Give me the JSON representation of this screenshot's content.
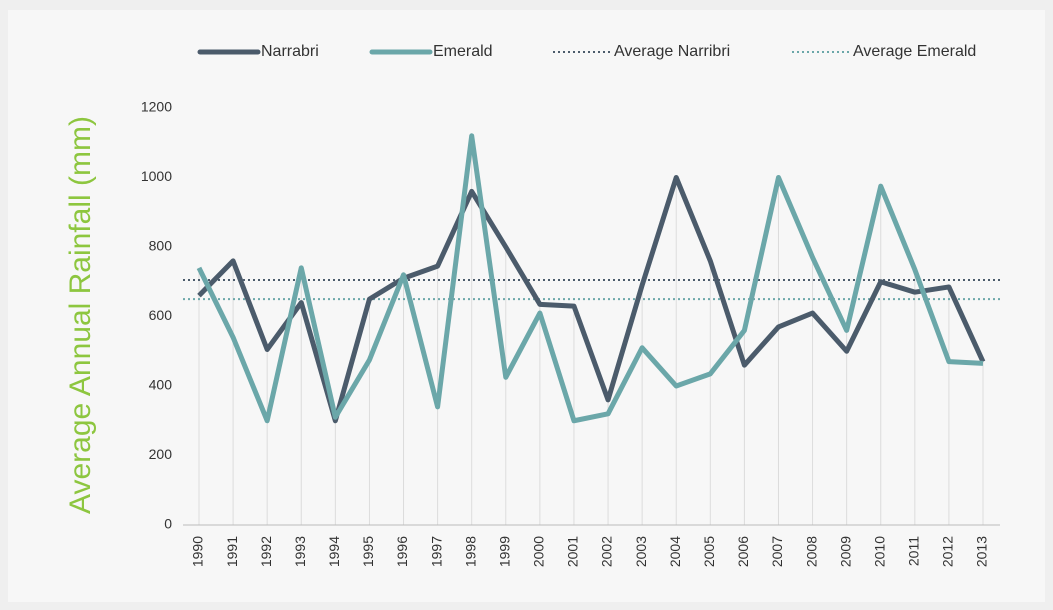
{
  "chart_data": {
    "type": "line",
    "y_label": "Average Annual Rainfall (mm)",
    "categories": [
      "1990",
      "1991",
      "1992",
      "1993",
      "1994",
      "1995",
      "1996",
      "1997",
      "1998",
      "1999",
      "2000",
      "2001",
      "2002",
      "2003",
      "2004",
      "2005",
      "2006",
      "2007",
      "2008",
      "2009",
      "2010",
      "2011",
      "2012",
      "2013"
    ],
    "series": [
      {
        "name": "Narrabri",
        "color": "#4b5b6b",
        "values": [
          660,
          760,
          505,
          640,
          300,
          650,
          710,
          745,
          960,
          800,
          635,
          630,
          360,
          690,
          1000,
          760,
          460,
          570,
          610,
          500,
          700,
          670,
          685,
          470
        ]
      },
      {
        "name": "Emerald",
        "color": "#6ba7a9",
        "values": [
          740,
          540,
          300,
          740,
          310,
          475,
          720,
          340,
          1120,
          425,
          610,
          300,
          320,
          510,
          400,
          435,
          560,
          1000,
          770,
          560,
          975,
          735,
          470,
          465
        ]
      }
    ],
    "reference_lines": [
      {
        "name": "Average Narribri",
        "color": "#4b5b6b",
        "value": 705
      },
      {
        "name": "Average Emerald",
        "color": "#6ba7a9",
        "value": 650
      }
    ],
    "ylim": [
      0,
      1200
    ],
    "yticks": [
      0,
      200,
      400,
      600,
      800,
      1000,
      1200
    ],
    "legend": "top"
  }
}
